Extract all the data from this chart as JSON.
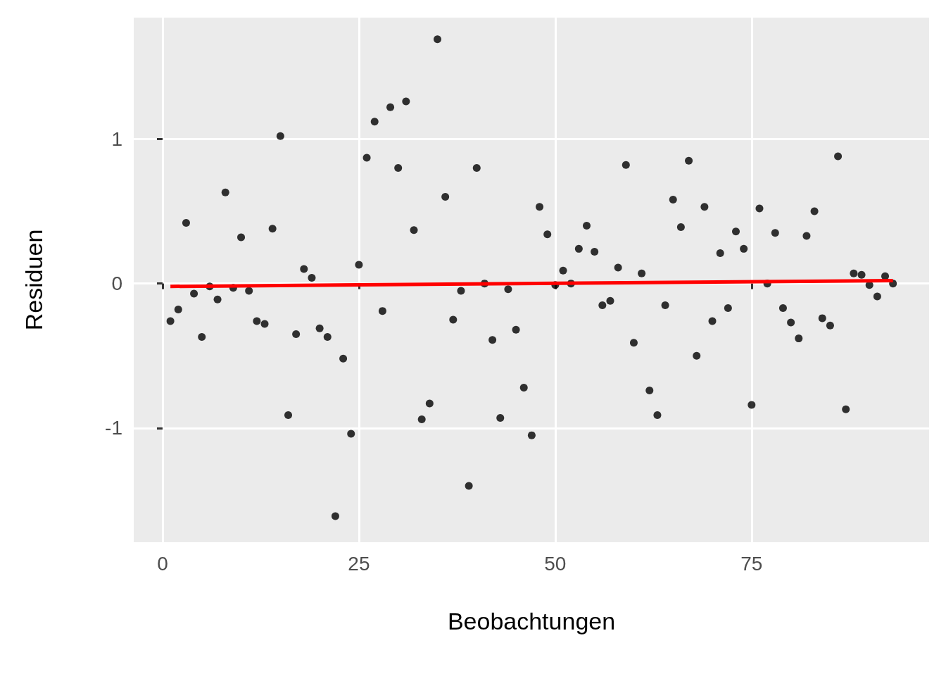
{
  "chart_data": {
    "type": "scatter",
    "xlabel": "Beobachtungen",
    "ylabel": "Residuen",
    "xlim": [
      -3.67,
      97.6
    ],
    "xticks": [
      0,
      25,
      50,
      75
    ],
    "ylim": [
      -1.79,
      1.84
    ],
    "yticks": [
      -1,
      0,
      1
    ],
    "grid": true,
    "marker": "circle",
    "x": [
      1,
      2,
      3,
      4,
      5,
      6,
      7,
      8,
      9,
      10,
      11,
      12,
      13,
      14,
      15,
      16,
      17,
      18,
      19,
      20,
      21,
      22,
      23,
      24,
      25,
      26,
      27,
      28,
      29,
      30,
      31,
      32,
      33,
      34,
      35,
      36,
      37,
      38,
      39,
      40,
      41,
      42,
      43,
      44,
      45,
      46,
      47,
      48,
      49,
      50,
      51,
      52,
      53,
      54,
      55,
      56,
      57,
      58,
      59,
      60,
      61,
      62,
      63,
      64,
      65,
      66,
      67,
      68,
      69,
      70,
      71,
      72,
      73,
      74,
      75,
      76,
      77,
      78,
      79,
      80,
      81,
      82,
      83,
      84,
      85,
      86,
      87,
      88,
      89,
      90,
      91,
      92,
      93
    ],
    "series": [
      {
        "color": "#000000",
        "values": [
          -0.26,
          -0.18,
          0.42,
          -0.07,
          -0.37,
          -0.02,
          -0.11,
          0.63,
          -0.03,
          0.32,
          -0.05,
          -0.26,
          -0.28,
          0.38,
          1.02,
          -0.91,
          -0.35,
          0.1,
          0.04,
          -0.31,
          -0.37,
          -1.61,
          -0.52,
          -1.04,
          0.13,
          0.87,
          1.12,
          -0.19,
          1.22,
          0.8,
          1.26,
          0.37,
          -0.94,
          -0.83,
          1.69,
          0.6,
          -0.25,
          -0.05,
          -1.4,
          0.8,
          0.0,
          -0.39,
          -0.93,
          -0.04,
          -0.32,
          -0.72,
          -1.05,
          0.53,
          0.34,
          -0.01,
          0.09,
          0.0,
          0.24,
          0.4,
          0.22,
          -0.15,
          -0.12,
          0.11,
          0.82,
          -0.41,
          0.07,
          -0.74,
          -0.91,
          -0.15,
          0.58,
          0.39,
          0.85,
          -0.5,
          0.53,
          -0.26,
          0.21,
          -0.17,
          0.36,
          0.24,
          -0.84,
          0.52,
          0.0,
          0.35,
          -0.17,
          -0.27,
          -0.38,
          0.33,
          0.5,
          -0.24,
          -0.29,
          0.88,
          -0.87,
          0.07,
          0.06,
          -0.01,
          -0.09,
          0.05,
          0.0
        ]
      },
      {
        "type": "line",
        "color": "#ff0000",
        "marker": "none",
        "x": [
          1,
          93
        ],
        "values": [
          -0.02,
          0.02
        ]
      }
    ]
  }
}
